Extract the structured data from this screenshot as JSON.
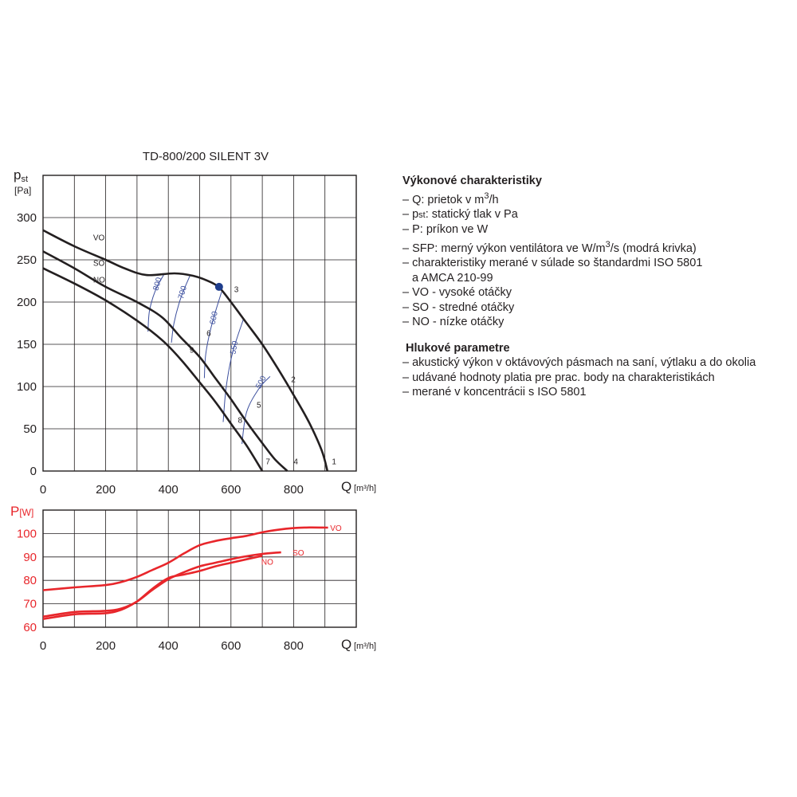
{
  "chart_data": [
    {
      "type": "line",
      "title": "TD-800/200 SILENT 3V",
      "ylabel_main": "p",
      "ylabel_sub": "st",
      "ylabel_unit": "[Pa]",
      "xlabel": "Q",
      "xlabel_unit": "[m³/h]",
      "xlim": [
        0,
        1000
      ],
      "ylim": [
        0,
        350
      ],
      "xticks": [
        0,
        200,
        400,
        600,
        800
      ],
      "yticks": [
        0,
        50,
        100,
        150,
        200,
        250,
        300
      ],
      "grid": true,
      "series": [
        {
          "name": "VO",
          "color": "#231f20",
          "points": [
            [
              0,
              285
            ],
            [
              100,
              266
            ],
            [
              200,
              250
            ],
            [
              260,
              240
            ],
            [
              330,
              232
            ],
            [
              420,
              234
            ],
            [
              480,
              231
            ],
            [
              520,
              226
            ],
            [
              560,
              218
            ],
            [
              600,
              200
            ],
            [
              650,
              175
            ],
            [
              700,
              150
            ],
            [
              750,
              121
            ],
            [
              800,
              90
            ],
            [
              850,
              57
            ],
            [
              890,
              24
            ],
            [
              908,
              0
            ]
          ]
        },
        {
          "name": "SO",
          "color": "#231f20",
          "points": [
            [
              0,
              260
            ],
            [
              100,
              240
            ],
            [
              200,
              218
            ],
            [
              300,
              200
            ],
            [
              380,
              182
            ],
            [
              440,
              158
            ],
            [
              500,
              135
            ],
            [
              550,
              110
            ],
            [
              600,
              85
            ],
            [
              650,
              58
            ],
            [
              700,
              33
            ],
            [
              740,
              14
            ],
            [
              780,
              0
            ]
          ]
        },
        {
          "name": "NO",
          "color": "#231f20",
          "points": [
            [
              0,
              240
            ],
            [
              100,
              222
            ],
            [
              200,
              202
            ],
            [
              300,
              178
            ],
            [
              380,
              155
            ],
            [
              440,
              132
            ],
            [
              500,
              105
            ],
            [
              550,
              82
            ],
            [
              600,
              56
            ],
            [
              650,
              30
            ],
            [
              700,
              0
            ]
          ]
        }
      ],
      "sfp_curves": [
        {
          "label": "800",
          "color": "#3c4f9e",
          "points": [
            [
              335,
              165
            ],
            [
              340,
              190
            ],
            [
              360,
              215
            ],
            [
              385,
              232
            ]
          ]
        },
        {
          "label": "700",
          "color": "#3c4f9e",
          "points": [
            [
              410,
              152
            ],
            [
              418,
              175
            ],
            [
              440,
              205
            ],
            [
              470,
              232
            ]
          ]
        },
        {
          "label": "600",
          "color": "#3c4f9e",
          "points": [
            [
              515,
              110
            ],
            [
              520,
              140
            ],
            [
              540,
              175
            ],
            [
              570,
              212
            ]
          ]
        },
        {
          "label": "550",
          "color": "#3c4f9e",
          "points": [
            [
              575,
              58
            ],
            [
              585,
              100
            ],
            [
              605,
              140
            ],
            [
              640,
              180
            ]
          ]
        },
        {
          "label": "500",
          "color": "#3c4f9e",
          "points": [
            [
              635,
              32
            ],
            [
              650,
              70
            ],
            [
              690,
              98
            ],
            [
              725,
              112
            ]
          ]
        }
      ],
      "marker": {
        "x": 562,
        "y": 218,
        "color": "#1f3d8c"
      },
      "point_labels": [
        {
          "text": "1",
          "x": 922,
          "y": 8
        },
        {
          "text": "2",
          "x": 792,
          "y": 105
        },
        {
          "text": "3",
          "x": 610,
          "y": 212
        },
        {
          "text": "4",
          "x": 800,
          "y": 8
        },
        {
          "text": "5",
          "x": 682,
          "y": 75
        },
        {
          "text": "6",
          "x": 522,
          "y": 160
        },
        {
          "text": "7",
          "x": 711,
          "y": 8
        },
        {
          "text": "8",
          "x": 622,
          "y": 57
        },
        {
          "text": "9",
          "x": 468,
          "y": 140
        }
      ],
      "curve_labels": [
        {
          "text": "VO",
          "x": 160,
          "y": 273
        },
        {
          "text": "SO",
          "x": 160,
          "y": 243
        },
        {
          "text": "NO",
          "x": 160,
          "y": 223
        }
      ]
    },
    {
      "type": "line",
      "ylabel": "P",
      "ylabel_unit": "[W]",
      "xlabel": "Q",
      "xlabel_unit": "[m³/h]",
      "xlim": [
        0,
        1000
      ],
      "ylim": [
        60,
        110
      ],
      "xticks": [
        0,
        200,
        400,
        600,
        800
      ],
      "yticks": [
        60,
        70,
        80,
        90,
        100
      ],
      "grid": true,
      "series": [
        {
          "name": "VO",
          "color": "#e8262b",
          "points": [
            [
              0,
              75.8
            ],
            [
              100,
              77
            ],
            [
              200,
              78
            ],
            [
              250,
              79.3
            ],
            [
              300,
              81.5
            ],
            [
              350,
              84.5
            ],
            [
              400,
              87.5
            ],
            [
              450,
              91.5
            ],
            [
              500,
              95
            ],
            [
              550,
              96.8
            ],
            [
              600,
              98
            ],
            [
              650,
              99
            ],
            [
              700,
              100.5
            ],
            [
              750,
              101.6
            ],
            [
              800,
              102.3
            ],
            [
              850,
              102.6
            ],
            [
              910,
              102.5
            ]
          ]
        },
        {
          "name": "SO",
          "color": "#e8262b",
          "points": [
            [
              0,
              64.5
            ],
            [
              100,
              66.5
            ],
            [
              200,
              67
            ],
            [
              250,
              68
            ],
            [
              300,
              71
            ],
            [
              350,
              76
            ],
            [
              400,
              80.5
            ],
            [
              450,
              83.5
            ],
            [
              500,
              86
            ],
            [
              550,
              87.5
            ],
            [
              600,
              89
            ],
            [
              650,
              90.3
            ],
            [
              700,
              91.3
            ],
            [
              760,
              92
            ]
          ]
        },
        {
          "name": "NO",
          "color": "#e8262b",
          "points": [
            [
              0,
              63.5
            ],
            [
              100,
              65.5
            ],
            [
              200,
              66
            ],
            [
              250,
              67.5
            ],
            [
              300,
              71
            ],
            [
              350,
              76.5
            ],
            [
              400,
              81
            ],
            [
              450,
              82.5
            ],
            [
              500,
              84
            ],
            [
              550,
              86
            ],
            [
              600,
              87.5
            ],
            [
              650,
              89
            ],
            [
              700,
              90.5
            ]
          ]
        }
      ],
      "curve_labels": [
        {
          "text": "VO",
          "x": 935,
          "y": 102.5
        },
        {
          "text": "SO",
          "x": 815,
          "y": 92
        },
        {
          "text": "NO",
          "x": 716,
          "y": 88
        }
      ]
    }
  ],
  "legend": {
    "heading1": "Výkonové charakteristiky",
    "items1": [
      {
        "pre": "– Q: prietok v m",
        "sup": "3",
        "post": "/h"
      },
      {
        "pre": "– p",
        "small": "st",
        "post": ": statický tlak v Pa"
      },
      {
        "pre": "– P: príkon ve W"
      },
      {
        "pre": "– SFP: merný výkon ventilátora ve W/m",
        "sup": "3",
        "post": "/s (modrá krivka)"
      },
      {
        "pre": "– charakteristiky merané v súlade so štandardmi ISO 5801"
      },
      {
        "pre": "a AMCA 210-99",
        "indent": true
      },
      {
        "pre": "– VO - vysoké otáčky"
      },
      {
        "pre": "– SO - stredné otáčky"
      },
      {
        "pre": "– NO - nízke otáčky"
      }
    ],
    "heading2": "Hlukové parametre",
    "items2": [
      {
        "pre": "– akustický výkon v oktávových pásmach na saní, výtlaku a do okolia"
      },
      {
        "pre": "– udávané hodnoty platia pre prac. body na charakteristikách"
      },
      {
        "pre": "– merané v koncentrácii s ISO 5801"
      }
    ]
  }
}
